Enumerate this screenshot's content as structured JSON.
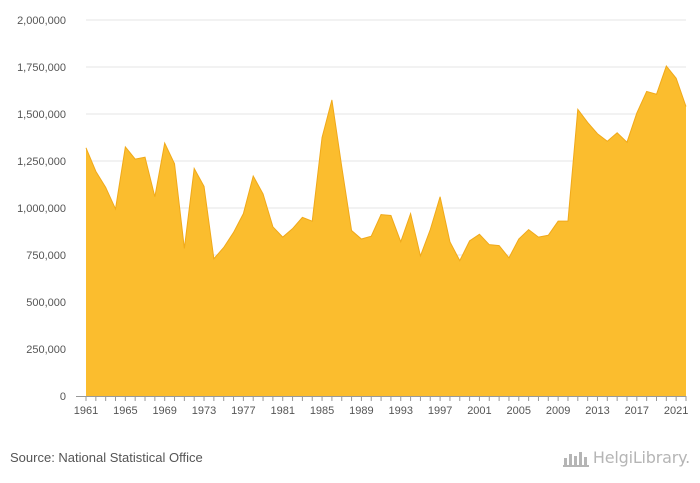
{
  "source_text": "Source: National Statistical Office",
  "logo_text": "HelgiLibrary.",
  "colors": {
    "area_fill": "#FBBD2E",
    "area_stroke": "#F0A91A",
    "grid": "#e6e6e6",
    "axis": "#999999"
  },
  "chart_data": {
    "type": "area",
    "title": "",
    "xlabel": "",
    "ylabel": "",
    "ylim": [
      0,
      2000000
    ],
    "y_ticks": [
      0,
      250000,
      500000,
      750000,
      1000000,
      1250000,
      1500000,
      1750000,
      2000000
    ],
    "y_tick_labels": [
      "0",
      "250,000",
      "500,000",
      "750,000",
      "1,000,000",
      "1,250,000",
      "1,500,000",
      "1,750,000",
      "2,000,000"
    ],
    "x_tick_labels": [
      "1961",
      "1965",
      "1969",
      "1973",
      "1977",
      "1981",
      "1985",
      "1989",
      "1993",
      "1997",
      "2001",
      "2005",
      "2009",
      "2013",
      "2017",
      "2021"
    ],
    "grid": true,
    "x": [
      1961,
      1962,
      1963,
      1964,
      1965,
      1966,
      1967,
      1968,
      1969,
      1970,
      1971,
      1972,
      1973,
      1974,
      1975,
      1976,
      1977,
      1978,
      1979,
      1980,
      1981,
      1982,
      1983,
      1984,
      1985,
      1986,
      1987,
      1988,
      1989,
      1990,
      1991,
      1992,
      1993,
      1994,
      1995,
      1996,
      1997,
      1998,
      1999,
      2000,
      2001,
      2002,
      2003,
      2004,
      2005,
      2006,
      2007,
      2008,
      2009,
      2010,
      2011,
      2012,
      2013,
      2014,
      2015,
      2016,
      2017,
      2018,
      2019,
      2020,
      2021,
      2022
    ],
    "series": [
      {
        "values": [
          1320000,
          1195000,
          1110000,
          995000,
          1325000,
          1260000,
          1270000,
          1060000,
          1345000,
          1235000,
          785000,
          1210000,
          1115000,
          730000,
          790000,
          870000,
          970000,
          1170000,
          1075000,
          900000,
          845000,
          890000,
          950000,
          930000,
          1375000,
          1575000,
          1220000,
          880000,
          835000,
          850000,
          965000,
          960000,
          820000,
          970000,
          745000,
          885000,
          1060000,
          820000,
          720000,
          825000,
          860000,
          805000,
          800000,
          735000,
          835000,
          885000,
          845000,
          855000,
          930000,
          930000,
          1525000,
          1455000,
          1395000,
          1355000,
          1400000,
          1350000,
          1505000,
          1620000,
          1605000,
          1755000,
          1690000,
          1540000
        ]
      }
    ]
  }
}
